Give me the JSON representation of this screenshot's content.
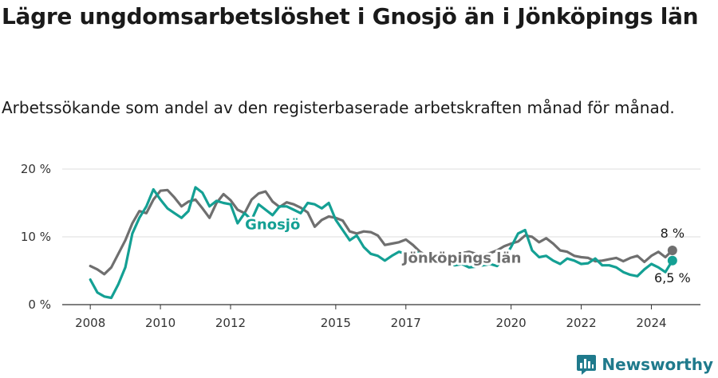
{
  "chart_data": {
    "type": "line",
    "title": "Lägre ungdomsarbetslöshet i Gnosjö än i Jönköpings län",
    "subtitle": "Arbetssökande som andel av den registerbaserade arbetskraften månad för månad.",
    "xlabel": "",
    "ylabel": "",
    "ylim": [
      0,
      20
    ],
    "xlim": [
      2007.2,
      2025.4
    ],
    "y_ticks": [
      0,
      10,
      20
    ],
    "y_tick_labels": [
      "0 %",
      "10 %",
      "20 %"
    ],
    "x_ticks": [
      2008,
      2010,
      2012,
      2015,
      2017,
      2020,
      2022,
      2024
    ],
    "x_tick_labels": [
      "2008",
      "2010",
      "2012",
      "2015",
      "2017",
      "2020",
      "2022",
      "2024"
    ],
    "grid": true,
    "series": [
      {
        "name": "Jönköpings län",
        "color": "#6f6f6f",
        "end_label": "8 %",
        "x": [
          2008.0,
          2008.2,
          2008.4,
          2008.6,
          2008.8,
          2009.0,
          2009.2,
          2009.4,
          2009.6,
          2009.8,
          2010.0,
          2010.2,
          2010.4,
          2010.6,
          2010.8,
          2011.0,
          2011.2,
          2011.4,
          2011.6,
          2011.8,
          2012.0,
          2012.2,
          2012.4,
          2012.6,
          2012.8,
          2013.0,
          2013.2,
          2013.4,
          2013.6,
          2013.8,
          2014.0,
          2014.2,
          2014.4,
          2014.6,
          2014.8,
          2015.0,
          2015.2,
          2015.4,
          2015.6,
          2015.8,
          2016.0,
          2016.2,
          2016.4,
          2016.6,
          2016.8,
          2017.0,
          2017.2,
          2017.4,
          2017.6,
          2017.8,
          2018.0,
          2018.2,
          2018.4,
          2018.6,
          2018.8,
          2019.0,
          2019.2,
          2019.4,
          2019.6,
          2019.8,
          2020.0,
          2020.2,
          2020.4,
          2020.6,
          2020.8,
          2021.0,
          2021.2,
          2021.4,
          2021.6,
          2021.8,
          2022.0,
          2022.2,
          2022.4,
          2022.6,
          2022.8,
          2023.0,
          2023.2,
          2023.4,
          2023.6,
          2023.8,
          2024.0,
          2024.2,
          2024.4,
          2024.6
        ],
        "y": [
          5.7,
          5.2,
          4.5,
          5.5,
          7.5,
          9.5,
          12.0,
          13.8,
          13.5,
          15.5,
          16.8,
          16.9,
          15.8,
          14.5,
          15.2,
          15.5,
          14.2,
          12.8,
          15.0,
          16.3,
          15.4,
          14.0,
          13.5,
          15.5,
          16.4,
          16.7,
          15.2,
          14.4,
          15.1,
          14.8,
          14.3,
          13.6,
          11.5,
          12.5,
          13.0,
          12.8,
          12.4,
          10.8,
          10.5,
          10.8,
          10.7,
          10.2,
          8.8,
          9.0,
          9.2,
          9.6,
          8.8,
          7.8,
          7.2,
          7.0,
          7.3,
          7.0,
          7.2,
          7.6,
          7.8,
          7.5,
          7.4,
          7.6,
          8.0,
          8.6,
          9.0,
          9.3,
          10.2,
          10.0,
          9.2,
          9.8,
          9.0,
          8.0,
          7.8,
          7.2,
          7.0,
          6.9,
          6.4,
          6.5,
          6.7,
          6.9,
          6.4,
          6.9,
          7.2,
          6.3,
          7.2,
          7.8,
          7.0,
          8.0
        ]
      },
      {
        "name": "Gnosjö",
        "color": "#14a094",
        "end_label": "6,5 %",
        "x": [
          2008.0,
          2008.2,
          2008.4,
          2008.6,
          2008.8,
          2009.0,
          2009.2,
          2009.4,
          2009.6,
          2009.8,
          2010.0,
          2010.2,
          2010.4,
          2010.6,
          2010.8,
          2011.0,
          2011.2,
          2011.4,
          2011.6,
          2011.8,
          2012.0,
          2012.2,
          2012.4,
          2012.6,
          2012.8,
          2013.0,
          2013.2,
          2013.4,
          2013.6,
          2013.8,
          2014.0,
          2014.2,
          2014.4,
          2014.6,
          2014.8,
          2015.0,
          2015.2,
          2015.4,
          2015.6,
          2015.8,
          2016.0,
          2016.2,
          2016.4,
          2016.6,
          2016.8,
          2017.0,
          2017.2,
          2017.4,
          2017.6,
          2017.8,
          2018.0,
          2018.2,
          2018.4,
          2018.6,
          2018.8,
          2019.0,
          2019.2,
          2019.4,
          2019.6,
          2019.8,
          2020.0,
          2020.2,
          2020.4,
          2020.6,
          2020.8,
          2021.0,
          2021.2,
          2021.4,
          2021.6,
          2021.8,
          2022.0,
          2022.2,
          2022.4,
          2022.6,
          2022.8,
          2023.0,
          2023.2,
          2023.4,
          2023.6,
          2023.8,
          2024.0,
          2024.2,
          2024.4,
          2024.6
        ],
        "y": [
          3.7,
          1.8,
          1.2,
          1.0,
          3.0,
          5.5,
          10.5,
          12.8,
          14.5,
          17.0,
          15.5,
          14.2,
          13.5,
          12.8,
          13.8,
          17.3,
          16.5,
          14.5,
          15.3,
          15.0,
          14.8,
          12.0,
          13.5,
          12.5,
          14.8,
          14.0,
          13.2,
          14.5,
          14.5,
          14.0,
          13.5,
          15.0,
          14.8,
          14.2,
          15.0,
          12.5,
          11.0,
          9.5,
          10.2,
          8.5,
          7.5,
          7.2,
          6.5,
          7.2,
          7.8,
          7.5,
          8.0,
          7.5,
          6.2,
          7.2,
          6.5,
          6.2,
          5.8,
          6.0,
          5.5,
          5.6,
          5.8,
          6.0,
          5.7,
          6.8,
          8.5,
          10.5,
          11.0,
          8.0,
          7.0,
          7.2,
          6.5,
          6.0,
          6.8,
          6.5,
          6.0,
          6.1,
          6.8,
          5.8,
          5.8,
          5.5,
          4.8,
          4.4,
          4.2,
          5.2,
          6.0,
          5.5,
          4.8,
          6.5
        ]
      }
    ]
  },
  "brand": {
    "name": "Newsworthy",
    "color": "#1f7a8c"
  }
}
